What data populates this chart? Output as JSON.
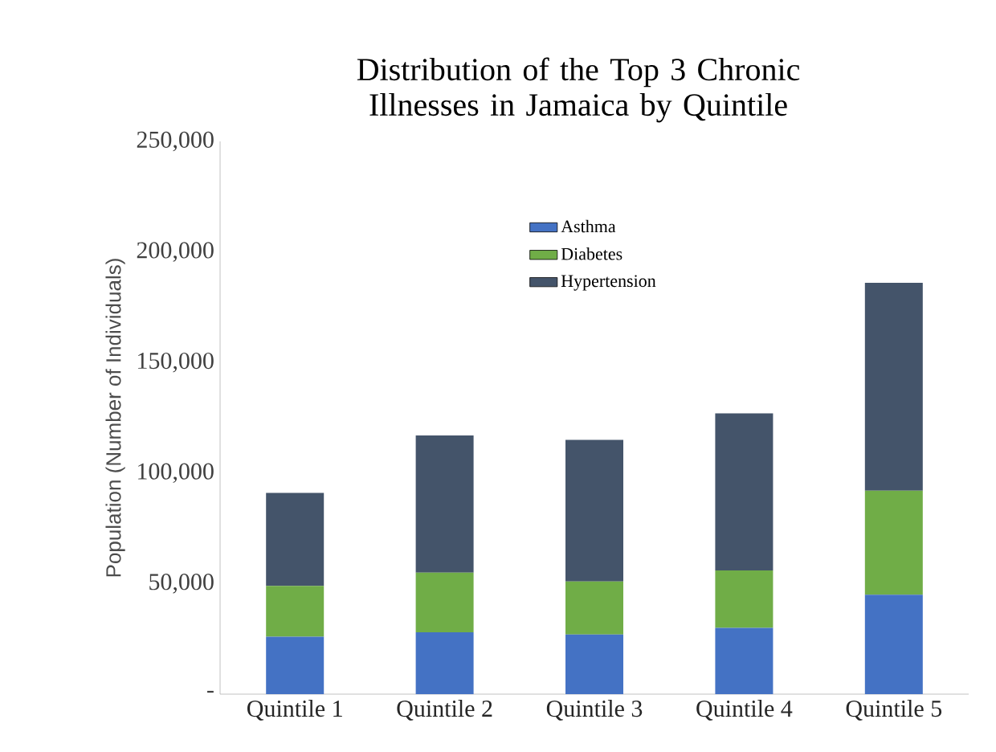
{
  "chart_data": {
    "type": "bar",
    "stacked": true,
    "title": "Distribution of the Top 3 Chronic Illnesses in Jamaica by Quintile",
    "ylabel": "Population (Number of Individuals)",
    "categories": [
      "Quintile 1",
      "Quintile 2",
      "Quintile 3",
      "Quintile 4",
      "Quintile 5"
    ],
    "series": [
      {
        "name": "Asthma",
        "color": "#4472c4",
        "values": [
          26000,
          28000,
          27000,
          30000,
          45000
        ]
      },
      {
        "name": "Diabetes",
        "color": "#70ad47",
        "values": [
          23000,
          27000,
          24000,
          26000,
          47000
        ]
      },
      {
        "name": "Hypertension",
        "color": "#44546a",
        "values": [
          42000,
          62000,
          64000,
          71000,
          94000
        ]
      }
    ],
    "ylim": [
      0,
      250000
    ],
    "yticks": [
      {
        "value": 0,
        "label": "-"
      },
      {
        "value": 50000,
        "label": "50,000"
      },
      {
        "value": 100000,
        "label": "100,000"
      },
      {
        "value": 150000,
        "label": "150,000"
      },
      {
        "value": 200000,
        "label": "200,000"
      },
      {
        "value": 250000,
        "label": "250,000"
      }
    ],
    "grid": false,
    "legend": "top"
  }
}
